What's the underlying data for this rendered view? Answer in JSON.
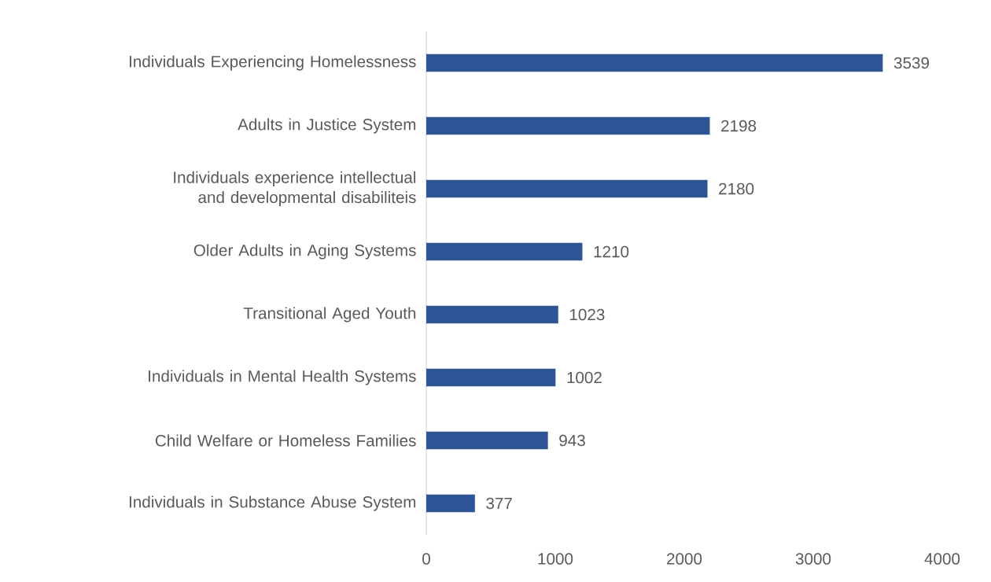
{
  "chart_data": {
    "type": "bar",
    "orientation": "horizontal",
    "categories": [
      "Individuals Experiencing Homelessness",
      "Adults in Justice System",
      "Individuals experience intellectual and developmental disabiliteis",
      "Older Adults in Aging Systems",
      "Transitional Aged Youth",
      "Individuals in Mental Health Systems",
      "Child Welfare or Homeless Families",
      "Individuals in Substance Abuse System"
    ],
    "values": [
      3539,
      2198,
      2180,
      1210,
      1023,
      1002,
      943,
      377
    ],
    "color": "#2f5597",
    "xlim": [
      0,
      4000
    ],
    "xticks": [
      0,
      1000,
      2000,
      3000,
      4000
    ],
    "data_labels": true,
    "grid": false
  }
}
